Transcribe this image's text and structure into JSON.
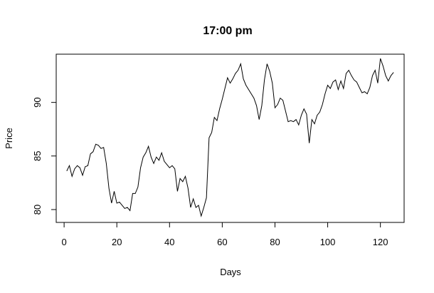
{
  "chart_data": {
    "type": "line",
    "title": "17:00 pm",
    "xlabel": "Days",
    "ylabel": "Price",
    "xlim": [
      -3,
      129
    ],
    "ylim": [
      78.8,
      94.5
    ],
    "xticks": [
      0,
      20,
      40,
      60,
      80,
      100,
      120
    ],
    "yticks": [
      80,
      85,
      90
    ],
    "grid": false,
    "legend": "none",
    "x": [
      1,
      2,
      3,
      4,
      5,
      6,
      7,
      8,
      9,
      10,
      11,
      12,
      13,
      14,
      15,
      16,
      17,
      18,
      19,
      20,
      21,
      22,
      23,
      24,
      25,
      26,
      27,
      28,
      29,
      30,
      31,
      32,
      33,
      34,
      35,
      36,
      37,
      38,
      39,
      40,
      41,
      42,
      43,
      44,
      45,
      46,
      47,
      48,
      49,
      50,
      51,
      52,
      53,
      54,
      55,
      56,
      57,
      58,
      59,
      60,
      61,
      62,
      63,
      64,
      65,
      66,
      67,
      68,
      69,
      70,
      71,
      72,
      73,
      74,
      75,
      76,
      77,
      78,
      79,
      80,
      81,
      82,
      83,
      84,
      85,
      86,
      87,
      88,
      89,
      90,
      91,
      92,
      93,
      94,
      95,
      96,
      97,
      98,
      99,
      100,
      101,
      102,
      103,
      104,
      105,
      106,
      107,
      108,
      109,
      110,
      111,
      112,
      113,
      114,
      115,
      116,
      117,
      118,
      119,
      120,
      121,
      122,
      123,
      124,
      125
    ],
    "series": [
      {
        "values": [
          83.6,
          84.1,
          83.1,
          83.8,
          84.1,
          83.9,
          83.2,
          84.0,
          84.1,
          85.2,
          85.4,
          86.1,
          86.0,
          85.7,
          85.8,
          84.3,
          82.0,
          80.6,
          81.7,
          80.6,
          80.7,
          80.4,
          80.1,
          80.2,
          79.9,
          81.5,
          81.5,
          82.1,
          83.9,
          84.9,
          85.3,
          85.9,
          84.9,
          84.3,
          84.9,
          84.6,
          85.3,
          84.5,
          84.2,
          83.9,
          84.1,
          83.8,
          81.7,
          82.9,
          82.6,
          83.1,
          82.0,
          80.2,
          81.0,
          80.2,
          80.4,
          79.4,
          80.2,
          81.1,
          86.7,
          87.2,
          88.6,
          88.3,
          89.4,
          90.3,
          91.3,
          92.3,
          91.8,
          92.2,
          92.7,
          93.0,
          93.6,
          92.2,
          91.6,
          91.2,
          90.8,
          90.4,
          89.7,
          88.4,
          89.7,
          92.1,
          93.6,
          92.9,
          91.8,
          89.5,
          89.8,
          90.4,
          90.2,
          89.2,
          88.2,
          88.3,
          88.2,
          88.4,
          87.9,
          88.8,
          89.4,
          88.9,
          86.2,
          88.4,
          88.0,
          88.8,
          89.1,
          89.8,
          90.8,
          91.6,
          91.3,
          91.9,
          92.1,
          91.2,
          92.0,
          91.3,
          92.7,
          93.0,
          92.5,
          92.1,
          91.9,
          91.4,
          90.9,
          91.0,
          90.8,
          91.4,
          92.5,
          93.0,
          91.8,
          94.1,
          93.4,
          92.5,
          92.0,
          92.5,
          92.8
        ]
      }
    ]
  }
}
